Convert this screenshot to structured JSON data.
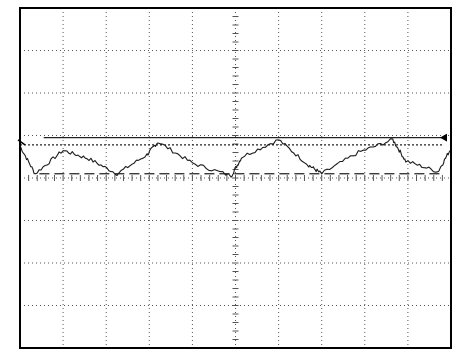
{
  "chart_data": {
    "type": "line",
    "grid": true,
    "grid_style": "dotted",
    "x_divisions": 10,
    "y_divisions": 8,
    "xlim": [
      0,
      10
    ],
    "ylim": [
      -4,
      4
    ],
    "series": [
      {
        "style": "solid",
        "color": "#1a1a1a",
        "x": [
          0.0,
          0.35,
          1.0,
          1.6,
          2.25,
          2.95,
          3.2,
          4.0,
          4.9,
          5.15,
          6.0,
          6.7,
          7.0,
          7.85,
          8.65,
          8.95,
          9.7,
          10.0
        ],
        "y": [
          0.75,
          0.1,
          0.65,
          0.45,
          0.1,
          0.55,
          0.85,
          0.35,
          0.05,
          0.5,
          0.9,
          0.3,
          0.1,
          0.6,
          0.9,
          0.4,
          0.15,
          0.7
        ]
      }
    ],
    "reference_lines": [
      {
        "style": "solid",
        "y": 0.95,
        "x_start": 0.55,
        "x_end": 10.0
      },
      {
        "style": "dashed",
        "y": 0.1,
        "x_start": 0.45,
        "x_end": 10.0
      },
      {
        "style": "dotted",
        "y": 0.78,
        "x_start": 0.0,
        "x_end": 10.0
      }
    ],
    "markers": [
      {
        "type": "arrow-left",
        "y": 0.95
      },
      {
        "type": "tick-left",
        "y": 0.78
      }
    ]
  },
  "colors": {
    "frame": "#000000",
    "grid": "#555555",
    "trace": "#1a1a1a",
    "background": "#ffffff"
  }
}
